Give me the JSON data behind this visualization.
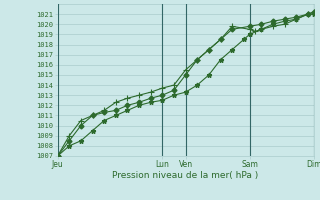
{
  "xlabel": "Pression niveau de la mer( hPa )",
  "ylim": [
    1007,
    1022
  ],
  "yticks": [
    1007,
    1008,
    1009,
    1010,
    1011,
    1012,
    1013,
    1014,
    1015,
    1016,
    1017,
    1018,
    1019,
    1020,
    1021
  ],
  "xtick_labels": [
    "Jeu",
    "Lun",
    "Ven",
    "Sam",
    "Dim"
  ],
  "xtick_positions": [
    0,
    36,
    44,
    66,
    88
  ],
  "x_total": 88,
  "background_color": "#cce8e8",
  "grid_color": "#aacccc",
  "line_color": "#2d6a2d",
  "series1_x": [
    0,
    4,
    8,
    12,
    16,
    20,
    24,
    28,
    32,
    36,
    40,
    44,
    48,
    52,
    56,
    60,
    64,
    66,
    70,
    74,
    78,
    82,
    86,
    88
  ],
  "series1_y": [
    1007,
    1008,
    1008.5,
    1009.5,
    1010.5,
    1011,
    1011.5,
    1012,
    1012.3,
    1012.5,
    1013,
    1013.3,
    1014,
    1015,
    1016.5,
    1017.5,
    1018.5,
    1019,
    1019.5,
    1020,
    1020.3,
    1020.5,
    1021,
    1021
  ],
  "series2_x": [
    0,
    4,
    8,
    12,
    16,
    20,
    24,
    28,
    32,
    36,
    40,
    44,
    48,
    52,
    56,
    60,
    66,
    70,
    74,
    78,
    82,
    86,
    88
  ],
  "series2_y": [
    1007,
    1008.5,
    1010,
    1011,
    1011.3,
    1011.5,
    1012,
    1012.3,
    1012.7,
    1013,
    1013.5,
    1015,
    1016.5,
    1017.5,
    1018.5,
    1019.5,
    1019.8,
    1020,
    1020.3,
    1020.5,
    1020.7,
    1021,
    1021.2
  ],
  "series3_x": [
    0,
    4,
    8,
    12,
    16,
    20,
    24,
    28,
    32,
    36,
    40,
    44,
    48,
    52,
    56,
    60,
    66,
    68,
    70,
    74,
    78,
    82,
    86,
    88
  ],
  "series3_y": [
    1007,
    1009,
    1010.5,
    1011,
    1011.5,
    1012.3,
    1012.7,
    1013,
    1013.3,
    1013.7,
    1014,
    1015.5,
    1016.5,
    1017.5,
    1018.5,
    1019.8,
    1019.5,
    1019.3,
    1019.5,
    1019.8,
    1020,
    1020.5,
    1021,
    1021.2
  ]
}
